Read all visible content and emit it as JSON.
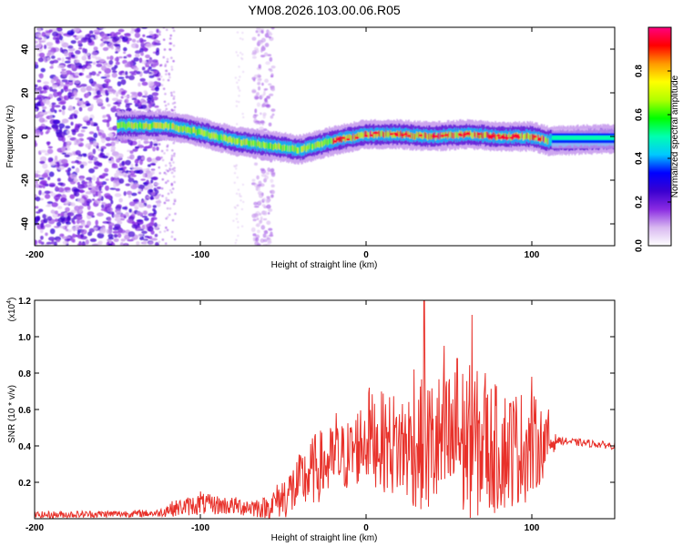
{
  "chart_data": [
    {
      "type": "heatmap",
      "title": "YM08.2026.103.00.06.R05",
      "xlabel": "Height of straight line (km)",
      "ylabel": "Frequency (Hz)",
      "xlim": [
        -200,
        150
      ],
      "ylim": [
        -50,
        50
      ],
      "xticks": [
        -200,
        -100,
        0,
        100
      ],
      "yticks": [
        -40,
        -20,
        0,
        20,
        40
      ],
      "colorbar": {
        "label": "Normalized spectral amplitude",
        "range": [
          0.0,
          1.0
        ],
        "ticks": [
          0.0,
          0.2,
          0.4,
          0.6,
          0.8
        ],
        "colormap": [
          "#ffffff",
          "#d8b8f0",
          "#8a2be2",
          "#3a00d0",
          "#0000ff",
          "#00c8ff",
          "#00ffb0",
          "#00ff00",
          "#b0ff00",
          "#ffff00",
          "#ff9900",
          "#ff0000",
          "#ff0080"
        ]
      },
      "ridge_center_hz": [
        {
          "x": -150,
          "y": 5
        },
        {
          "x": -120,
          "y": 5
        },
        {
          "x": -100,
          "y": 2
        },
        {
          "x": -80,
          "y": -2
        },
        {
          "x": -60,
          "y": -4
        },
        {
          "x": -40,
          "y": -6
        },
        {
          "x": -20,
          "y": -2
        },
        {
          "x": 0,
          "y": 1
        },
        {
          "x": 20,
          "y": 1
        },
        {
          "x": 40,
          "y": 0
        },
        {
          "x": 60,
          "y": 1
        },
        {
          "x": 80,
          "y": 0
        },
        {
          "x": 100,
          "y": 0
        },
        {
          "x": 110,
          "y": -2
        },
        {
          "x": 150,
          "y": -1
        }
      ]
    },
    {
      "type": "line",
      "xlabel": "Height of straight line (km)",
      "ylabel": "SNR (10 * v/v)",
      "y_multiplier": "(x10",
      "y_multiplier_exp": "4",
      "y_multiplier_close": ")",
      "xlim": [
        -200,
        150
      ],
      "ylim": [
        0,
        1.2
      ],
      "xticks": [
        -200,
        -100,
        0,
        100
      ],
      "yticks": [
        0.2,
        0.4,
        0.6,
        0.8,
        1.0,
        1.2
      ],
      "line_color": "#e8312a",
      "envelope": [
        {
          "x": -200,
          "base": 0.02,
          "amp": 0.02
        },
        {
          "x": -125,
          "base": 0.03,
          "amp": 0.02
        },
        {
          "x": -120,
          "base": 0.05,
          "amp": 0.04
        },
        {
          "x": -100,
          "base": 0.08,
          "amp": 0.06
        },
        {
          "x": -80,
          "base": 0.07,
          "amp": 0.05
        },
        {
          "x": -60,
          "base": 0.06,
          "amp": 0.06
        },
        {
          "x": -45,
          "base": 0.15,
          "amp": 0.15
        },
        {
          "x": -30,
          "base": 0.28,
          "amp": 0.2
        },
        {
          "x": -10,
          "base": 0.35,
          "amp": 0.2
        },
        {
          "x": 0,
          "base": 0.45,
          "amp": 0.25
        },
        {
          "x": 20,
          "base": 0.4,
          "amp": 0.3
        },
        {
          "x": 40,
          "base": 0.4,
          "amp": 0.4
        },
        {
          "x": 60,
          "base": 0.42,
          "amp": 0.45
        },
        {
          "x": 80,
          "base": 0.38,
          "amp": 0.35
        },
        {
          "x": 100,
          "base": 0.4,
          "amp": 0.3
        },
        {
          "x": 112,
          "base": 0.42,
          "amp": 0.1
        },
        {
          "x": 115,
          "base": 0.43,
          "amp": 0.02
        },
        {
          "x": 150,
          "base": 0.4,
          "amp": 0.02
        }
      ],
      "peaks": [
        {
          "x": 35,
          "y": 1.21
        },
        {
          "x": 64,
          "y": 1.12
        },
        {
          "x": 47,
          "y": 0.95
        },
        {
          "x": 55,
          "y": 0.88
        },
        {
          "x": 29,
          "y": 0.82
        },
        {
          "x": 2,
          "y": 0.72
        },
        {
          "x": 72,
          "y": 0.8
        },
        {
          "x": 100,
          "y": 0.78
        },
        {
          "x": 110,
          "y": 0.6
        },
        {
          "x": -18,
          "y": 0.58
        },
        {
          "x": -100,
          "y": 0.15
        }
      ]
    }
  ]
}
